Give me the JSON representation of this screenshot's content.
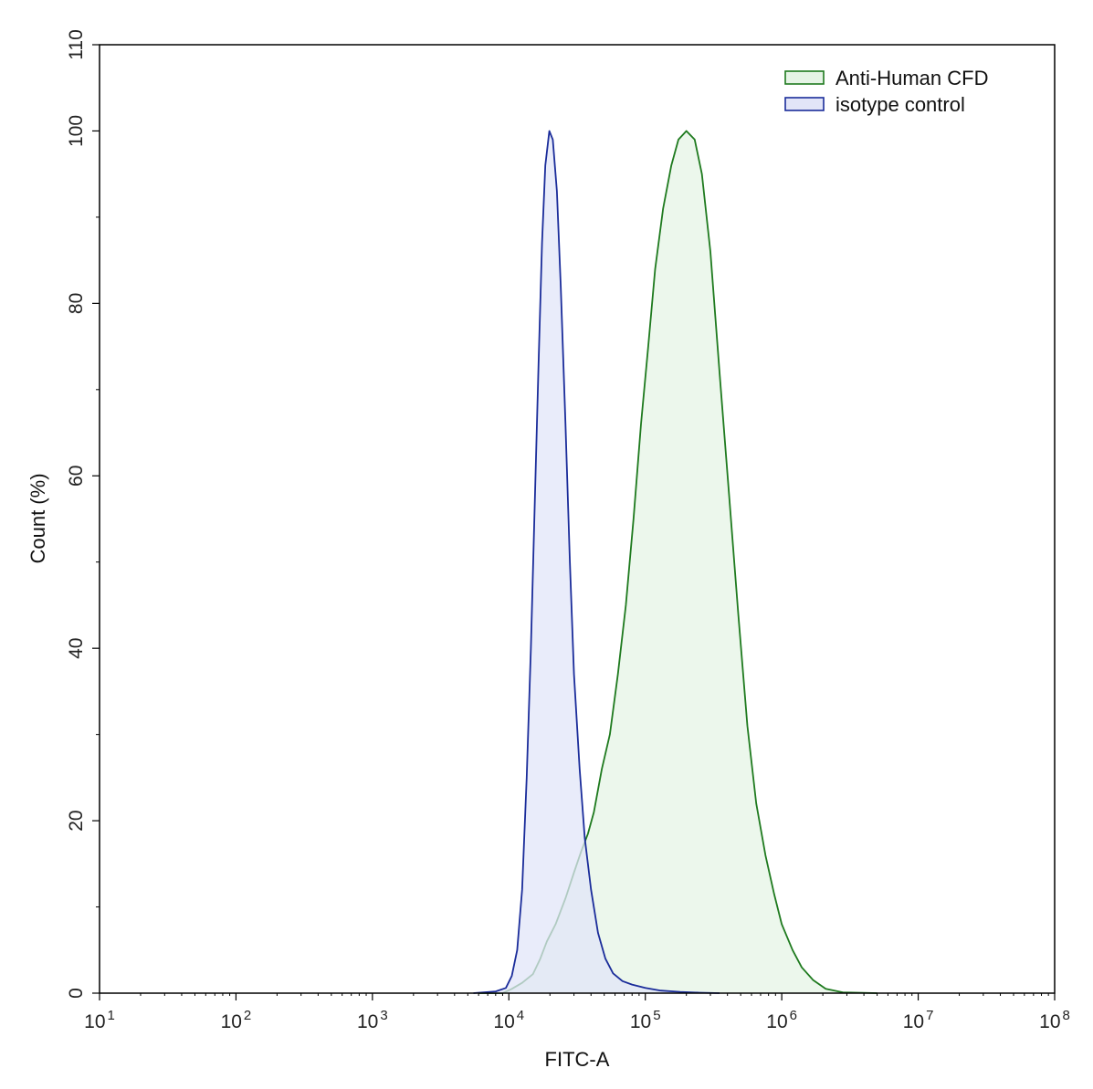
{
  "chart_data": {
    "type": "area",
    "xlabel": "FITC-A",
    "ylabel": "Count  (%)",
    "x_scale": "log",
    "xlim": [
      10,
      100000000
    ],
    "ylim": [
      0,
      110
    ],
    "x_ticks": [
      {
        "value": 10,
        "base": "10",
        "exp": "1"
      },
      {
        "value": 100,
        "base": "10",
        "exp": "2"
      },
      {
        "value": 1000,
        "base": "10",
        "exp": "3"
      },
      {
        "value": 10000,
        "base": "10",
        "exp": "4"
      },
      {
        "value": 100000,
        "base": "10",
        "exp": "5"
      },
      {
        "value": 1000000,
        "base": "10",
        "exp": "6"
      },
      {
        "value": 10000000,
        "base": "10",
        "exp": "7"
      },
      {
        "value": 100000000,
        "base": "10",
        "exp": "8"
      }
    ],
    "y_ticks": [
      0,
      20,
      40,
      60,
      80,
      100,
      110
    ],
    "y_tick_labels": [
      "0",
      "20",
      "40",
      "60",
      "80",
      "100",
      "110"
    ],
    "legend": {
      "position": "top-right"
    },
    "series": [
      {
        "name": "Anti-Human CFD",
        "stroke": "#1e7a1e",
        "fill": "#e6f4e6",
        "points": [
          [
            6000,
            0
          ],
          [
            9000,
            0
          ],
          [
            10500,
            0.5
          ],
          [
            12500,
            1.2
          ],
          [
            15000,
            2.2
          ],
          [
            17000,
            4
          ],
          [
            19000,
            6
          ],
          [
            22000,
            8
          ],
          [
            26000,
            11
          ],
          [
            30000,
            14
          ],
          [
            34000,
            16.5
          ],
          [
            38000,
            18.5
          ],
          [
            42000,
            21
          ],
          [
            48000,
            26
          ],
          [
            55000,
            30
          ],
          [
            63000,
            37
          ],
          [
            72000,
            45
          ],
          [
            82000,
            55
          ],
          [
            93000,
            66
          ],
          [
            105000,
            75
          ],
          [
            118000,
            84
          ],
          [
            135000,
            91
          ],
          [
            155000,
            96
          ],
          [
            175000,
            99
          ],
          [
            200000,
            100
          ],
          [
            230000,
            99
          ],
          [
            260000,
            95
          ],
          [
            300000,
            86
          ],
          [
            350000,
            72
          ],
          [
            410000,
            58
          ],
          [
            480000,
            44
          ],
          [
            560000,
            31
          ],
          [
            650000,
            22
          ],
          [
            760000,
            16
          ],
          [
            880000,
            11.5
          ],
          [
            1000000,
            8
          ],
          [
            1200000,
            5
          ],
          [
            1400000,
            3
          ],
          [
            1700000,
            1.5
          ],
          [
            2100000,
            0.5
          ],
          [
            2800000,
            0.1
          ],
          [
            5000000,
            0
          ]
        ]
      },
      {
        "name": "isotype control",
        "stroke": "#1a2c9a",
        "fill": "#e2e5f8",
        "points": [
          [
            5500,
            0
          ],
          [
            8000,
            0.2
          ],
          [
            9500,
            0.6
          ],
          [
            10500,
            2
          ],
          [
            11500,
            5
          ],
          [
            12500,
            12
          ],
          [
            13500,
            25
          ],
          [
            14500,
            40
          ],
          [
            15500,
            57
          ],
          [
            16500,
            73
          ],
          [
            17500,
            87
          ],
          [
            18500,
            96
          ],
          [
            19800,
            100
          ],
          [
            21000,
            99
          ],
          [
            22500,
            93
          ],
          [
            24000,
            82
          ],
          [
            26000,
            66
          ],
          [
            28000,
            50
          ],
          [
            30000,
            37
          ],
          [
            33000,
            26
          ],
          [
            36000,
            18
          ],
          [
            40000,
            12
          ],
          [
            45000,
            7
          ],
          [
            51000,
            4
          ],
          [
            58000,
            2.3
          ],
          [
            68000,
            1.4
          ],
          [
            80000,
            1.0
          ],
          [
            100000,
            0.6
          ],
          [
            130000,
            0.3
          ],
          [
            180000,
            0.15
          ],
          [
            250000,
            0.05
          ],
          [
            350000,
            0
          ]
        ]
      }
    ]
  }
}
